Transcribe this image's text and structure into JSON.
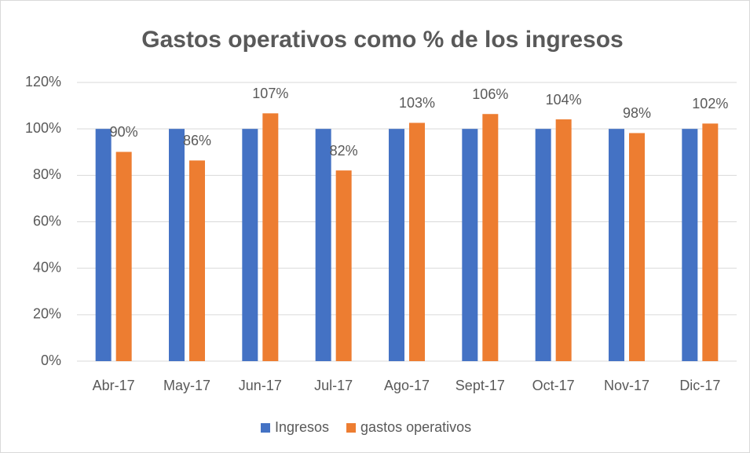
{
  "chart_data": {
    "type": "bar",
    "title": "Gastos operativos como % de los ingresos",
    "categories": [
      "Abr-17",
      "May-17",
      "Jun-17",
      "Jul-17",
      "Ago-17",
      "Sept-17",
      "Oct-17",
      "Nov-17",
      "Dic-17"
    ],
    "series": [
      {
        "name": "Ingresos",
        "color": "#4472c4",
        "values": [
          100,
          100,
          100,
          100,
          100,
          100,
          100,
          100,
          100
        ]
      },
      {
        "name": "gastos operativos",
        "color": "#ed7d31",
        "values": [
          90.1,
          86.4,
          106.7,
          82.1,
          102.6,
          106.4,
          104.1,
          98.2,
          102.3
        ],
        "value_labels": [
          "90%",
          "86%",
          "107%",
          "82%",
          "103%",
          "106%",
          "104%",
          "98%",
          "102%"
        ]
      }
    ],
    "ylim": [
      0,
      120
    ],
    "yticks": [
      {
        "value": 0,
        "label": "0%"
      },
      {
        "value": 20,
        "label": "20%"
      },
      {
        "value": 40,
        "label": "40%"
      },
      {
        "value": 60,
        "label": "60%"
      },
      {
        "value": 80,
        "label": "80%"
      },
      {
        "value": 100,
        "label": "100%"
      },
      {
        "value": 120,
        "label": "120%"
      }
    ],
    "grid": true,
    "legend": "bottom"
  }
}
